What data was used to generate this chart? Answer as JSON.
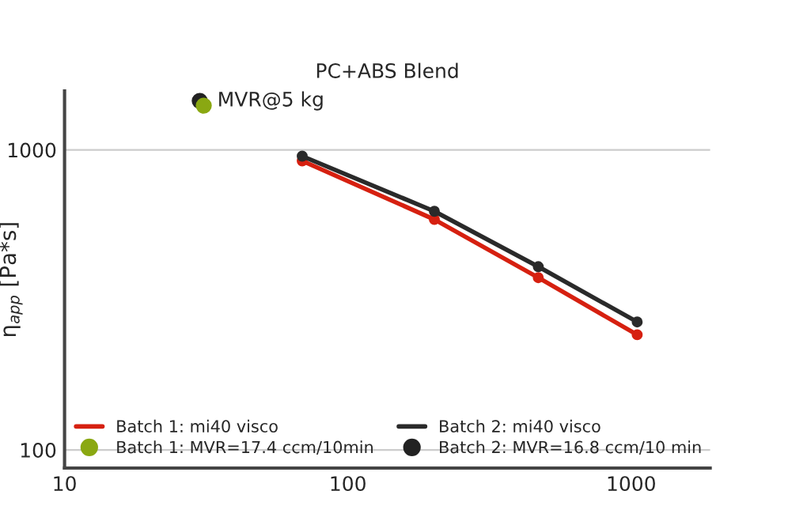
{
  "chart_data": {
    "type": "line",
    "title": "PC+ABS Blend",
    "ylabel": "η$_{app}$ [Pa*s]",
    "log": "xy",
    "xlim": [
      10,
      1900
    ],
    "ylim": [
      87,
      1570
    ],
    "xticks": [
      10,
      100,
      1000
    ],
    "yticks": [
      100,
      1000
    ],
    "grid": "y",
    "legend": "bottom left",
    "marker": "circle",
    "series": [
      {
        "name": "Batch 1: mi40 visco",
        "color": "#d62010",
        "x": [
          69,
          202,
          470,
          1050
        ],
        "values": [
          919,
          586,
          375,
          242
        ]
      },
      {
        "name": "Batch 2: mi40 visco",
        "color": "#2a2a2a",
        "x": [
          69,
          202,
          470,
          1050
        ],
        "values": [
          953,
          624,
          408,
          267
        ]
      },
      {
        "name": "Batch 1: MVR=17.4 ccm/10min",
        "type": "scatter",
        "color": "#8aa812",
        "x": [
          31
        ],
        "values": [
          1404
        ]
      },
      {
        "name": "Batch 2: MVR=16.8 ccm/10 min",
        "type": "scatter",
        "color": "#222222",
        "x": [
          30
        ],
        "values": [
          1456
        ]
      }
    ],
    "annotations": [
      {
        "text": "MVR@5 kg",
        "x": 30,
        "y": 1456
      }
    ]
  }
}
